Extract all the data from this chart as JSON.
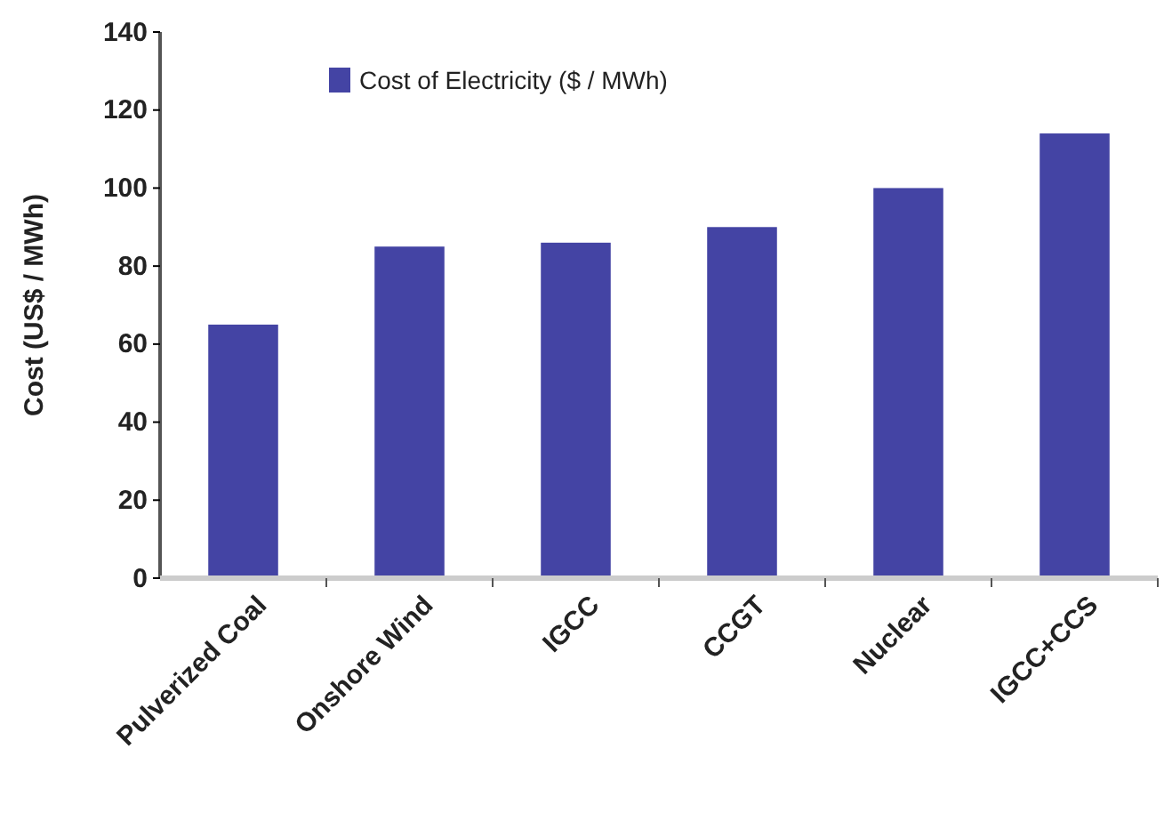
{
  "chart_data": {
    "type": "bar",
    "ylabel": "Cost (US$ / MWh)",
    "categories": [
      "Pulverized Coal",
      "Onshore Wind",
      "IGCC",
      "CCGT",
      "Nuclear",
      "IGCC+CCS"
    ],
    "series": [
      {
        "name": "Cost of Electricity  ($ / MWh)",
        "color": "#4444a4",
        "values": [
          65,
          85,
          86,
          90,
          100,
          114
        ]
      }
    ],
    "ylim": [
      0,
      140
    ],
    "yticks": [
      0,
      20,
      40,
      60,
      80,
      100,
      120,
      140
    ],
    "legend": "top",
    "grid": false
  }
}
